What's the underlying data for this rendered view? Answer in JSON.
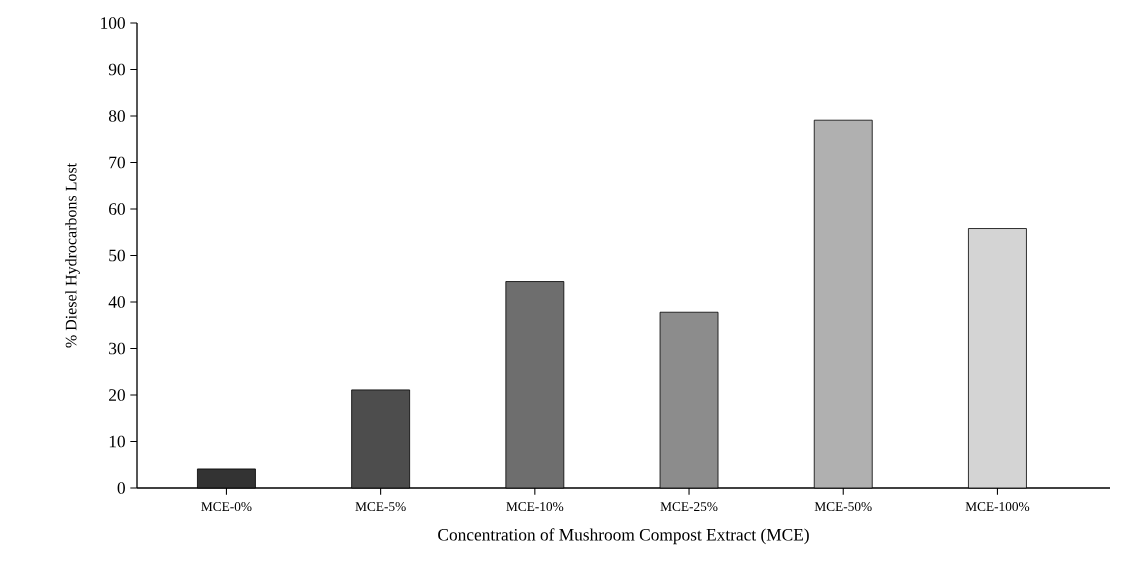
{
  "chart_data": {
    "type": "bar",
    "xlabel": "Concentration of Mushroom Compost Extract (MCE)",
    "ylabel": "% Diesel Hydrocarbons Lost",
    "categories": [
      "MCE-0%",
      "MCE-5%",
      "MCE-10%",
      "MCE-25%",
      "MCE-50%",
      "MCE-100%"
    ],
    "values": [
      4.1,
      21.1,
      44.4,
      37.8,
      79.1,
      55.8
    ],
    "colors": [
      "#333333",
      "#4d4d4d",
      "#6e6e6e",
      "#8c8c8c",
      "#b0b0b0",
      "#d4d4d4"
    ],
    "ylim": [
      0,
      100
    ],
    "yticks": [
      0,
      10,
      20,
      30,
      40,
      50,
      60,
      70,
      80,
      90,
      100
    ],
    "grid": false
  }
}
